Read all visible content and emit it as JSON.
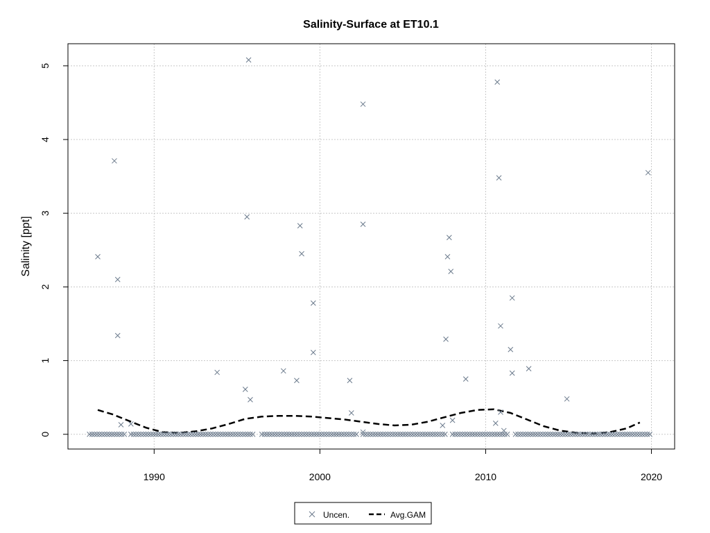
{
  "chart_data": {
    "type": "scatter",
    "title": "Salinity-Surface at ET10.1",
    "xlabel": "",
    "ylabel": "Salinity [ppt]",
    "xlim": [
      1984.8,
      2021.4
    ],
    "ylim": [
      -0.2,
      5.3
    ],
    "x_ticks": [
      1990,
      2000,
      2010,
      2020
    ],
    "y_ticks": [
      0,
      1,
      2,
      3,
      4,
      5
    ],
    "grid": true,
    "legend_position": "bottom-center",
    "colors": {
      "points": "#6b7a8c",
      "gam": "#000000",
      "grid": "#c8c8c8",
      "frame": "#000000"
    },
    "series": [
      {
        "name": "Uncen.",
        "kind": "points",
        "marker": "x",
        "values_nonzero": [
          [
            1986.6,
            2.41
          ],
          [
            1987.6,
            3.71
          ],
          [
            1987.8,
            2.1
          ],
          [
            1987.8,
            1.34
          ],
          [
            1988.0,
            0.13
          ],
          [
            1988.6,
            0.14
          ],
          [
            1993.8,
            0.84
          ],
          [
            1995.5,
            0.61
          ],
          [
            1995.7,
            5.08
          ],
          [
            1995.6,
            2.95
          ],
          [
            1995.8,
            0.47
          ],
          [
            1997.8,
            0.86
          ],
          [
            1998.6,
            0.73
          ],
          [
            1998.8,
            2.83
          ],
          [
            1998.9,
            2.45
          ],
          [
            1999.6,
            1.78
          ],
          [
            1999.6,
            1.11
          ],
          [
            2001.8,
            0.73
          ],
          [
            2001.9,
            0.29
          ],
          [
            2002.6,
            4.48
          ],
          [
            2002.6,
            2.85
          ],
          [
            2002.6,
            0.03
          ],
          [
            2007.4,
            0.12
          ],
          [
            2007.6,
            1.29
          ],
          [
            2007.7,
            2.41
          ],
          [
            2007.8,
            2.67
          ],
          [
            2007.9,
            2.21
          ],
          [
            2008.0,
            0.19
          ],
          [
            2008.8,
            0.75
          ],
          [
            2010.6,
            0.15
          ],
          [
            2010.7,
            4.78
          ],
          [
            2010.8,
            3.48
          ],
          [
            2010.9,
            0.3
          ],
          [
            2010.9,
            1.47
          ],
          [
            2011.1,
            0.05
          ],
          [
            2011.5,
            1.15
          ],
          [
            2011.6,
            0.83
          ],
          [
            2011.6,
            1.85
          ],
          [
            2012.6,
            0.89
          ],
          [
            2014.9,
            0.48
          ],
          [
            2019.8,
            3.55
          ]
        ],
        "zero_value_x_ranges": [
          [
            1986.1,
            1988.2
          ],
          [
            1988.6,
            1996.0
          ],
          [
            1996.5,
            2002.2
          ],
          [
            2002.6,
            2007.6
          ],
          [
            2008.0,
            2011.4
          ],
          [
            2011.8,
            2019.9
          ]
        ],
        "zero_value_x_step": 0.15
      },
      {
        "name": "Avg.GAM",
        "kind": "line",
        "dash": "long-dash",
        "x": [
          1986.6,
          1987.5,
          1988.5,
          1989.5,
          1990.5,
          1991.5,
          1992.5,
          1993.5,
          1994.5,
          1995.5,
          1996.5,
          1997.5,
          1998.5,
          1999.5,
          2000.5,
          2001.5,
          2002.5,
          2003.5,
          2004.5,
          2005.5,
          2006.5,
          2007.5,
          2008.5,
          2009.5,
          2010.5,
          2011.5,
          2012.5,
          2013.5,
          2014.5,
          2015.5,
          2016.5,
          2017.5,
          2018.5,
          2019.3
        ],
        "values": [
          0.33,
          0.27,
          0.18,
          0.09,
          0.03,
          0.02,
          0.04,
          0.08,
          0.14,
          0.21,
          0.24,
          0.25,
          0.25,
          0.24,
          0.22,
          0.2,
          0.17,
          0.14,
          0.12,
          0.13,
          0.17,
          0.23,
          0.29,
          0.33,
          0.34,
          0.29,
          0.2,
          0.11,
          0.05,
          0.02,
          0.01,
          0.03,
          0.08,
          0.16
        ]
      }
    ],
    "legend": {
      "items": [
        "Uncen.",
        "Avg.GAM"
      ]
    }
  }
}
